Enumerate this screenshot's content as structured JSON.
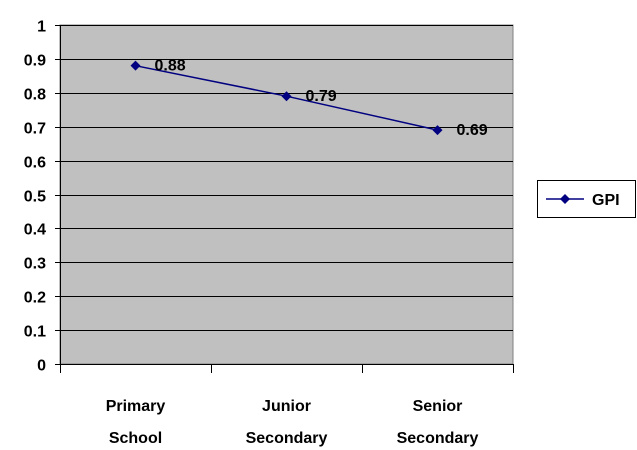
{
  "chart_data": {
    "type": "line",
    "categories": [
      [
        "Primary",
        "School"
      ],
      [
        "Junior",
        "Secondary"
      ],
      [
        "Senior",
        "Secondary"
      ]
    ],
    "series": [
      {
        "name": "GPI",
        "values": [
          0.88,
          0.79,
          0.69
        ],
        "color": "#000080"
      }
    ],
    "data_labels": [
      "0.88",
      "0.79",
      "0.69"
    ],
    "ylim": [
      0,
      1
    ],
    "y_ticks": [
      "0",
      "0.1",
      "0.2",
      "0.3",
      "0.4",
      "0.5",
      "0.6",
      "0.7",
      "0.8",
      "0.9",
      "1"
    ],
    "grid": true,
    "plot_background": "#c0c0c0",
    "legend": {
      "position": "right",
      "entries": [
        "GPI"
      ]
    }
  }
}
